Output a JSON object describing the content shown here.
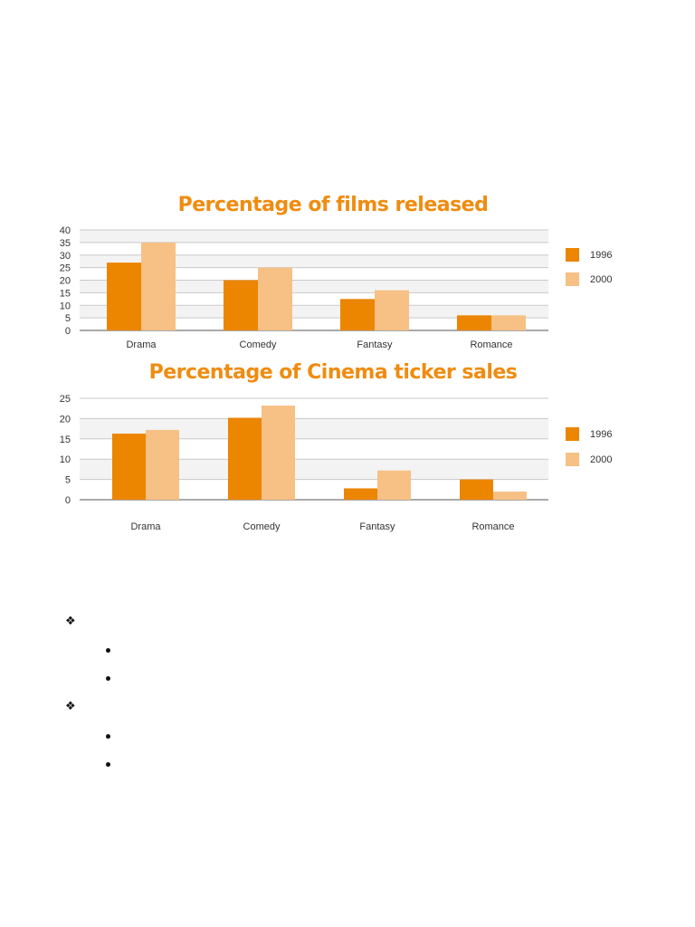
{
  "chart_data": [
    {
      "type": "bar",
      "title": "Percentage of films released",
      "categories": [
        "Drama",
        "Comedy",
        "Fantasy",
        "Romance"
      ],
      "series": [
        {
          "name": "1996",
          "values": [
            27,
            20,
            12.5,
            6
          ],
          "color": "#ec8500"
        },
        {
          "name": "2000",
          "values": [
            35,
            25,
            16,
            6
          ],
          "color": "#f7c084"
        }
      ],
      "yticks": [
        "0",
        "5",
        "10",
        "15",
        "20",
        "25",
        "30",
        "35",
        "40"
      ],
      "ylim": [
        0,
        40
      ],
      "xlabel": "",
      "ylabel": "",
      "grid": true,
      "legend": "right"
    },
    {
      "type": "bar",
      "title": "Percentage of Cinema ticker sales",
      "categories": [
        "Drama",
        "Comedy",
        "Fantasy",
        "Romance"
      ],
      "series": [
        {
          "name": "1996",
          "values": [
            16.3,
            20.2,
            2.8,
            5
          ],
          "color": "#ec8500"
        },
        {
          "name": "2000",
          "values": [
            17.2,
            23.2,
            7.2,
            2
          ],
          "color": "#f7c084"
        }
      ],
      "yticks": [
        "0",
        "5",
        "10",
        "15",
        "20",
        "25"
      ],
      "ylim": [
        0,
        25
      ],
      "xlabel": "",
      "ylabel": "",
      "grid": true,
      "legend": "right"
    }
  ],
  "bullets": {
    "groups": [
      {
        "marker": "diamond-bullet-icon",
        "items": [
          "",
          ""
        ]
      },
      {
        "marker": "diamond-bullet-icon",
        "items": [
          "",
          ""
        ]
      }
    ]
  }
}
